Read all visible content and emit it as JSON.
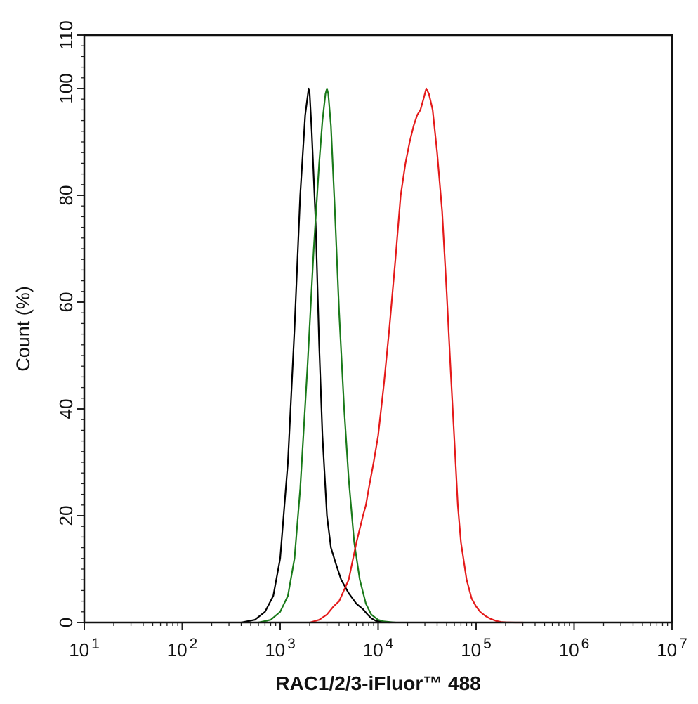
{
  "chart_data": {
    "type": "line",
    "title": "",
    "xlabel": "RAC1/2/3-iFluor™ 488",
    "ylabel": "Count  (%)",
    "xscale": "log",
    "xlim": [
      10,
      10000000
    ],
    "ylim": [
      0,
      110
    ],
    "x_ticks": [
      {
        "value": 10,
        "base": "10",
        "exp": "1"
      },
      {
        "value": 100,
        "base": "10",
        "exp": "2"
      },
      {
        "value": 1000,
        "base": "10",
        "exp": "3"
      },
      {
        "value": 10000,
        "base": "10",
        "exp": "4"
      },
      {
        "value": 100000,
        "base": "10",
        "exp": "5"
      },
      {
        "value": 1000000,
        "base": "10",
        "exp": "6"
      },
      {
        "value": 10000000,
        "base": "10",
        "exp": "7"
      }
    ],
    "y_ticks": [
      "0",
      "20",
      "40",
      "60",
      "80",
      "100",
      "110"
    ],
    "grid": false,
    "legend": "none",
    "series": [
      {
        "color": "#000000",
        "x": [
          400,
          550,
          700,
          850,
          1000,
          1200,
          1400,
          1600,
          1800,
          1950,
          2000,
          2100,
          2300,
          2500,
          2700,
          3000,
          3300,
          3700,
          4200,
          5000,
          6000,
          7000,
          7800,
          8500,
          9500,
          11000,
          13000
        ],
        "y": [
          0,
          0.5,
          2,
          5,
          12,
          30,
          55,
          80,
          95,
          100,
          99,
          92,
          75,
          52,
          35,
          20,
          14,
          11,
          8,
          5.5,
          3.5,
          2.5,
          1.5,
          0.8,
          0.3,
          0.1,
          0
        ]
      },
      {
        "color": "#1a7a1a",
        "x": [
          600,
          800,
          1000,
          1200,
          1400,
          1600,
          1900,
          2200,
          2500,
          2700,
          2900,
          3000,
          3100,
          3300,
          3600,
          4000,
          4500,
          5000,
          5700,
          6500,
          7500,
          8500,
          10000,
          11500,
          13000,
          15000
        ],
        "y": [
          0,
          0.5,
          2,
          5,
          12,
          25,
          48,
          70,
          86,
          94,
          99,
          100,
          99,
          93,
          78,
          58,
          40,
          27,
          15,
          8,
          3.5,
          1.5,
          0.5,
          0.2,
          0.1,
          0
        ]
      },
      {
        "color": "#e41a1a",
        "x": [
          2000,
          2500,
          3000,
          3500,
          4000,
          5000,
          6000,
          7000,
          7500,
          8000,
          9000,
          10000,
          11500,
          13000,
          15000,
          17000,
          19000,
          21000,
          23000,
          25000,
          27000,
          29000,
          31000,
          33000,
          36000,
          40000,
          45000,
          50000,
          55000,
          60000,
          65000,
          70000,
          80000,
          90000,
          100000,
          110000,
          125000,
          140000,
          160000,
          180000,
          200000,
          250000,
          300000
        ],
        "y": [
          0,
          0.5,
          1.5,
          3,
          4,
          8,
          15,
          20,
          22,
          25,
          30,
          35,
          45,
          55,
          68,
          80,
          86,
          90,
          93,
          95,
          96,
          98,
          100,
          99,
          96,
          88,
          77,
          62,
          47,
          34,
          22,
          15,
          8,
          4.5,
          3,
          2,
          1.2,
          0.7,
          0.3,
          0.1,
          0.05,
          0,
          0
        ]
      }
    ]
  }
}
